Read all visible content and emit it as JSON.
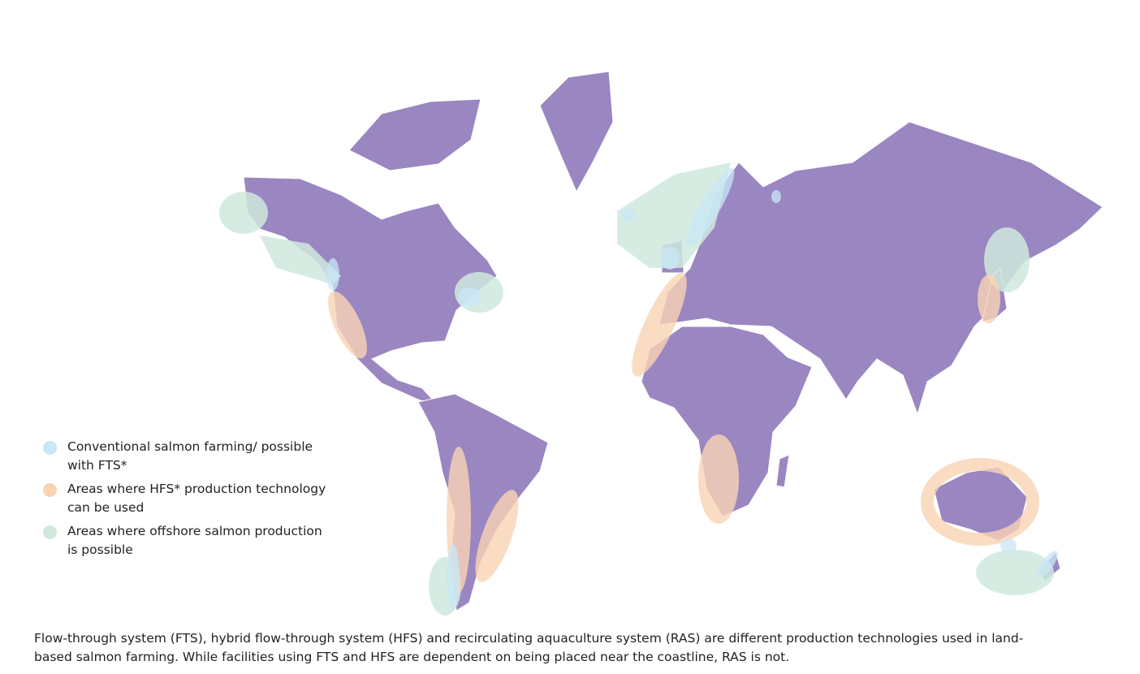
{
  "legend": {
    "items": [
      {
        "label": "Conventional salmon farming/ possible with FTS*",
        "color": "#c9e7f6"
      },
      {
        "label": "Areas where HFS* production technology can be used",
        "color": "#f9d4b4"
      },
      {
        "label": "Areas where offshore salmon production is possible",
        "color": "#cfe9dd"
      }
    ]
  },
  "caption": "Flow-through system (FTS), hybrid flow-through system (HFS) and recirculating aquaculture system (RAS) are different production technologies used in land-based salmon farming. While facilities using FTS and HFS are dependent on being placed near the coastline, RAS is not."
}
